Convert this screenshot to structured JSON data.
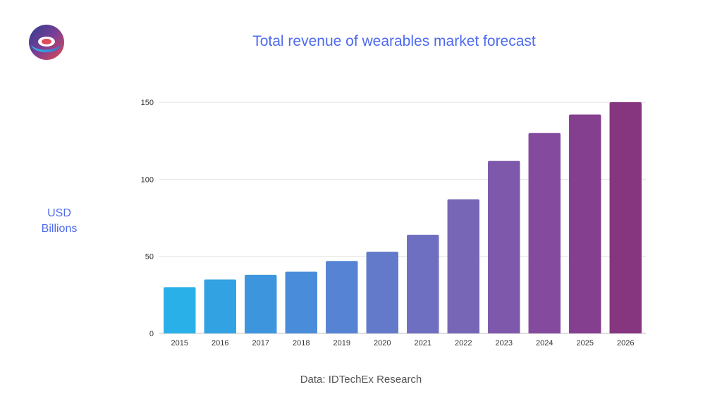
{
  "logo": {
    "name": "brand-logo"
  },
  "footer": {
    "source": "Data: IDTechEx Research"
  },
  "colors": {
    "title": "#4f6bef",
    "grid": "#e2e2e2",
    "bar_gradient": [
      "#2ab0e8",
      "#3b96df",
      "#5186d6",
      "#6a74c6",
      "#7a63b3",
      "#84479c",
      "#86357f"
    ]
  },
  "chart_data": {
    "type": "bar",
    "title": "Total revenue of wearables market forecast",
    "ylabel_lines": [
      "USD",
      "Billions"
    ],
    "xlabel": "",
    "categories": [
      "2015",
      "2016",
      "2017",
      "2018",
      "2019",
      "2020",
      "2021",
      "2022",
      "2023",
      "2024",
      "2025",
      "2026"
    ],
    "values": [
      30,
      35,
      38,
      40,
      47,
      53,
      64,
      87,
      112,
      130,
      142,
      150
    ],
    "ylim": [
      0,
      150
    ],
    "yticks": [
      0,
      50,
      100,
      150
    ],
    "grid": true,
    "legend": "none"
  }
}
